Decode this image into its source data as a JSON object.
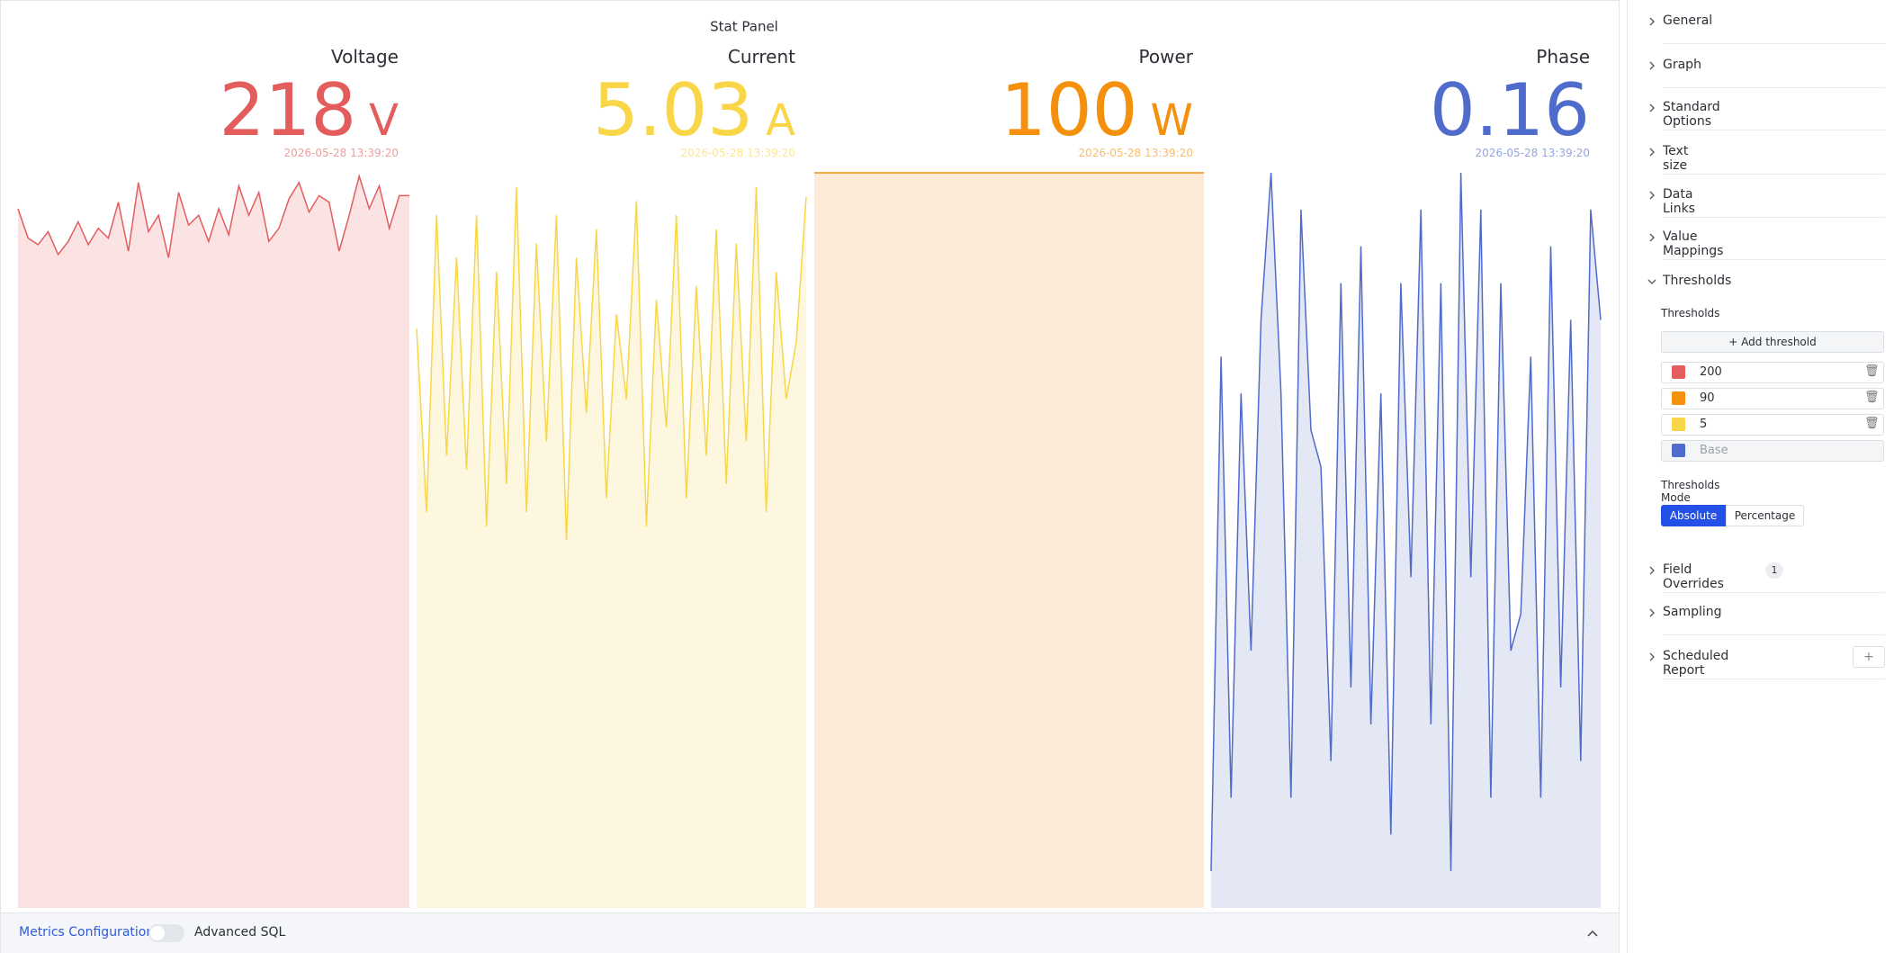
{
  "panel": {
    "title": "Stat Panel",
    "stats": [
      {
        "type": "line",
        "name": "Voltage",
        "value": "218",
        "unit": "V",
        "timestamp": "2026-05-28 13:39:20",
        "color": "#e35d5d",
        "fill": "#fbe3e3",
        "ylim": [
          0,
          225
        ],
        "values": [
          214,
          205,
          203,
          207,
          200,
          204,
          210,
          203,
          208,
          205,
          216,
          201,
          222,
          207,
          212,
          199,
          219,
          209,
          212,
          204,
          214,
          206,
          221,
          212,
          219,
          204,
          208,
          217,
          222,
          213,
          218,
          216,
          201,
          212,
          224,
          214,
          221,
          208,
          218,
          218
        ]
      },
      {
        "type": "line",
        "name": "Current",
        "value": "5.03",
        "unit": "A",
        "timestamp": "2026-05-28 13:39:20",
        "color": "#f9d648",
        "fill": "#fef7e0",
        "ylim": [
          0,
          5.2
        ],
        "values": [
          4.1,
          2.8,
          4.9,
          3.2,
          4.6,
          3.1,
          4.9,
          2.7,
          4.5,
          3.0,
          5.1,
          2.8,
          4.7,
          3.3,
          4.9,
          2.6,
          4.6,
          3.5,
          4.8,
          2.9,
          4.2,
          3.6,
          5.0,
          2.7,
          4.3,
          3.4,
          4.9,
          2.9,
          4.4,
          3.2,
          4.8,
          3.0,
          4.7,
          3.3,
          5.1,
          2.8,
          4.5,
          3.6,
          4.0,
          5.03
        ]
      },
      {
        "type": "line",
        "name": "Power",
        "value": "100",
        "unit": "W",
        "timestamp": "2026-05-28 13:39:20",
        "color": "#f4900c",
        "fill": "#fdebd8",
        "ylim": [
          0,
          100
        ],
        "values": [
          100,
          100,
          100,
          100,
          100,
          100,
          100,
          100,
          100,
          100,
          100,
          100,
          100,
          100,
          100,
          100,
          100,
          100,
          100,
          100
        ]
      },
      {
        "type": "line",
        "name": "Phase",
        "value": "0.16",
        "timestamp": "2026-05-28 13:39:20",
        "color": "#4f6bcc",
        "fill": "#e3e8f4",
        "ylim": [
          0,
          0.2
        ],
        "values": [
          0.01,
          0.15,
          0.03,
          0.14,
          0.07,
          0.16,
          0.2,
          0.14,
          0.03,
          0.19,
          0.13,
          0.12,
          0.04,
          0.17,
          0.06,
          0.18,
          0.05,
          0.14,
          0.02,
          0.17,
          0.09,
          0.19,
          0.05,
          0.17,
          0.01,
          0.2,
          0.09,
          0.19,
          0.03,
          0.17,
          0.07,
          0.08,
          0.15,
          0.03,
          0.18,
          0.06,
          0.16,
          0.04,
          0.19,
          0.16
        ]
      }
    ]
  },
  "footer": {
    "link": "Metrics Configuration",
    "toggle_label": "Advanced SQL"
  },
  "sidebar": {
    "sections": [
      "General",
      "Graph",
      "Standard Options",
      "Text size",
      "Data Links",
      "Value Mappings",
      "Thresholds",
      "Field Overrides",
      "Sampling",
      "Scheduled Report"
    ],
    "field_overrides_count": "1",
    "thresholds": {
      "label": "Thresholds",
      "add_button": "Add threshold",
      "items": [
        {
          "value": "200",
          "color": "#e35d5d"
        },
        {
          "value": "90",
          "color": "#f4900c"
        },
        {
          "value": "5",
          "color": "#f9d648"
        },
        {
          "value": "Base",
          "color": "#4f6bcc"
        }
      ],
      "mode_label": "Thresholds Mode",
      "modes": [
        "Absolute",
        "Percentage"
      ]
    }
  }
}
